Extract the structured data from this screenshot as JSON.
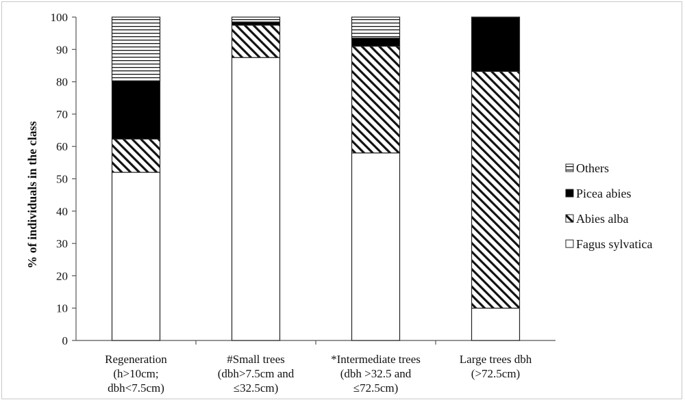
{
  "chart_data": {
    "type": "bar",
    "stacked": true,
    "title": "",
    "xlabel": "",
    "ylabel": "% of individuals in the class",
    "ylim": [
      0,
      100
    ],
    "yticks": [
      0,
      10,
      20,
      30,
      40,
      50,
      60,
      70,
      80,
      90,
      100
    ],
    "grid": false,
    "legend_position": "right",
    "categories": [
      [
        "Regeneration",
        "(h>10cm;",
        "dbh<7.5cm)"
      ],
      [
        "#Small trees",
        "(dbh>7.5cm and",
        "≤32.5cm)"
      ],
      [
        "*Intermediate trees",
        "(dbh >32.5 and",
        "≤72.5cm)"
      ],
      [
        "Large trees dbh",
        "(>72.5cm)"
      ]
    ],
    "series": [
      {
        "name": "Fagus sylvatica",
        "pattern": "solid-white",
        "values": [
          52,
          87.5,
          58,
          10
        ]
      },
      {
        "name": "Abies alba",
        "pattern": "diagonal-hatch",
        "values": [
          10.3,
          10,
          33,
          73.2
        ]
      },
      {
        "name": "Picea abies",
        "pattern": "solid-black",
        "values": [
          18,
          1,
          2.5,
          16.8
        ]
      },
      {
        "name": "Others",
        "pattern": "horizontal-lines",
        "values": [
          19.7,
          1.5,
          6.5,
          0
        ]
      }
    ],
    "legend_order": [
      "Others",
      "Picea abies",
      "Abies alba",
      "Fagus sylvatica"
    ]
  }
}
